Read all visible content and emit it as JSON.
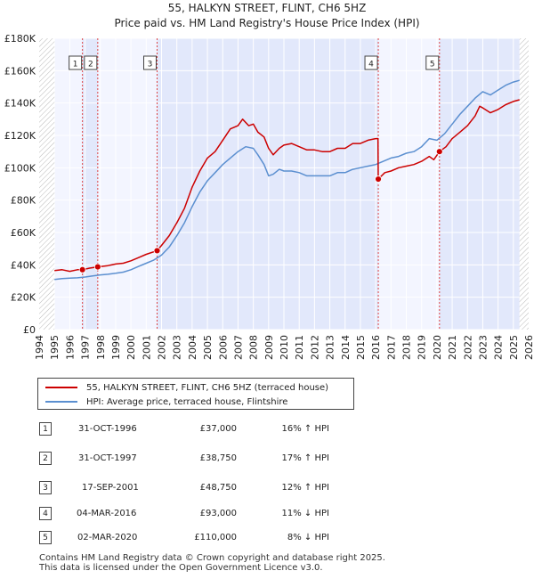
{
  "chart_data": {
    "type": "line",
    "title": "55, HALKYN STREET, FLINT, CH6 5HZ",
    "subtitle": "Price paid vs. HM Land Registry's House Price Index (HPI)",
    "xlabel": "",
    "ylabel": "",
    "xlim": [
      1994.0,
      2026.0
    ],
    "ylim": [
      0,
      180000
    ],
    "xticks": [
      "1994",
      "1995",
      "1996",
      "1997",
      "1998",
      "1999",
      "2000",
      "2001",
      "2002",
      "2003",
      "2004",
      "2005",
      "2006",
      "2007",
      "2008",
      "2009",
      "2010",
      "2011",
      "2012",
      "2013",
      "2014",
      "2015",
      "2016",
      "2017",
      "2018",
      "2019",
      "2020",
      "2021",
      "2022",
      "2023",
      "2024",
      "2025",
      "2026"
    ],
    "yticks": [
      {
        "value": 0,
        "label": "£0"
      },
      {
        "value": 20000,
        "label": "£20K"
      },
      {
        "value": 40000,
        "label": "£40K"
      },
      {
        "value": 60000,
        "label": "£60K"
      },
      {
        "value": 80000,
        "label": "£80K"
      },
      {
        "value": 100000,
        "label": "£100K"
      },
      {
        "value": 120000,
        "label": "£120K"
      },
      {
        "value": 140000,
        "label": "£140K"
      },
      {
        "value": 160000,
        "label": "£160K"
      },
      {
        "value": 180000,
        "label": "£180K"
      }
    ],
    "data_start": 1995.0,
    "data_end": 2025.4,
    "grid": true,
    "series": [
      {
        "name": "55, HALKYN STREET, FLINT, CH6 5HZ (terraced house)",
        "color": "#cc0000",
        "points": [
          [
            1995.0,
            36500
          ],
          [
            1995.5,
            37000
          ],
          [
            1996.0,
            36000
          ],
          [
            1996.5,
            37000
          ],
          [
            1996.83,
            37000
          ],
          [
            1997.3,
            38000
          ],
          [
            1997.83,
            38750
          ],
          [
            1998.5,
            39500
          ],
          [
            1999.0,
            40500
          ],
          [
            1999.5,
            41000
          ],
          [
            2000.0,
            42500
          ],
          [
            2000.5,
            44500
          ],
          [
            2001.0,
            46500
          ],
          [
            2001.71,
            48750
          ],
          [
            2002.0,
            52000
          ],
          [
            2002.5,
            58000
          ],
          [
            2003.0,
            66000
          ],
          [
            2003.5,
            75000
          ],
          [
            2004.0,
            88000
          ],
          [
            2004.5,
            98000
          ],
          [
            2005.0,
            106000
          ],
          [
            2005.5,
            110000
          ],
          [
            2006.0,
            117000
          ],
          [
            2006.5,
            124000
          ],
          [
            2007.0,
            126000
          ],
          [
            2007.3,
            130000
          ],
          [
            2007.7,
            126000
          ],
          [
            2008.0,
            127000
          ],
          [
            2008.3,
            122000
          ],
          [
            2008.7,
            119000
          ],
          [
            2009.0,
            112000
          ],
          [
            2009.3,
            108000
          ],
          [
            2009.7,
            112000
          ],
          [
            2010.0,
            114000
          ],
          [
            2010.5,
            115000
          ],
          [
            2011.0,
            113000
          ],
          [
            2011.5,
            111000
          ],
          [
            2012.0,
            111000
          ],
          [
            2012.5,
            110000
          ],
          [
            2013.0,
            110000
          ],
          [
            2013.5,
            112000
          ],
          [
            2014.0,
            112000
          ],
          [
            2014.5,
            115000
          ],
          [
            2015.0,
            115000
          ],
          [
            2015.5,
            117000
          ],
          [
            2016.0,
            118000
          ],
          [
            2016.15,
            118000
          ],
          [
            2016.17,
            93000
          ],
          [
            2016.6,
            97000
          ],
          [
            2017.0,
            98000
          ],
          [
            2017.5,
            100000
          ],
          [
            2018.0,
            101000
          ],
          [
            2018.5,
            102000
          ],
          [
            2019.0,
            104000
          ],
          [
            2019.5,
            107000
          ],
          [
            2019.8,
            105000
          ],
          [
            2020.17,
            110000
          ],
          [
            2020.6,
            113000
          ],
          [
            2021.0,
            118000
          ],
          [
            2021.5,
            122000
          ],
          [
            2022.0,
            126000
          ],
          [
            2022.5,
            132000
          ],
          [
            2022.8,
            138000
          ],
          [
            2023.0,
            137000
          ],
          [
            2023.5,
            134000
          ],
          [
            2024.0,
            136000
          ],
          [
            2024.5,
            139000
          ],
          [
            2025.0,
            141000
          ],
          [
            2025.4,
            142000
          ]
        ]
      },
      {
        "name": "HPI: Average price, terraced house, Flintshire",
        "color": "#5b8fd0",
        "points": [
          [
            1995.0,
            31000
          ],
          [
            1995.5,
            31500
          ],
          [
            1996.0,
            31800
          ],
          [
            1996.5,
            32000
          ],
          [
            1997.0,
            32500
          ],
          [
            1997.5,
            33200
          ],
          [
            1998.0,
            33800
          ],
          [
            1998.5,
            34200
          ],
          [
            1999.0,
            34800
          ],
          [
            1999.5,
            35500
          ],
          [
            2000.0,
            37000
          ],
          [
            2000.5,
            39000
          ],
          [
            2001.0,
            41000
          ],
          [
            2001.5,
            43000
          ],
          [
            2002.0,
            46000
          ],
          [
            2002.5,
            51000
          ],
          [
            2003.0,
            58000
          ],
          [
            2003.5,
            66000
          ],
          [
            2004.0,
            76000
          ],
          [
            2004.5,
            85000
          ],
          [
            2005.0,
            92000
          ],
          [
            2005.5,
            97000
          ],
          [
            2006.0,
            102000
          ],
          [
            2006.5,
            106000
          ],
          [
            2007.0,
            110000
          ],
          [
            2007.5,
            113000
          ],
          [
            2008.0,
            112000
          ],
          [
            2008.3,
            108000
          ],
          [
            2008.7,
            102000
          ],
          [
            2009.0,
            95000
          ],
          [
            2009.3,
            96000
          ],
          [
            2009.7,
            99000
          ],
          [
            2010.0,
            98000
          ],
          [
            2010.5,
            98000
          ],
          [
            2011.0,
            97000
          ],
          [
            2011.5,
            95000
          ],
          [
            2012.0,
            95000
          ],
          [
            2012.5,
            95000
          ],
          [
            2013.0,
            95000
          ],
          [
            2013.5,
            97000
          ],
          [
            2014.0,
            97000
          ],
          [
            2014.5,
            99000
          ],
          [
            2015.0,
            100000
          ],
          [
            2015.5,
            101000
          ],
          [
            2016.0,
            102000
          ],
          [
            2016.5,
            104000
          ],
          [
            2017.0,
            106000
          ],
          [
            2017.5,
            107000
          ],
          [
            2018.0,
            109000
          ],
          [
            2018.5,
            110000
          ],
          [
            2019.0,
            113000
          ],
          [
            2019.5,
            118000
          ],
          [
            2020.0,
            117000
          ],
          [
            2020.5,
            121000
          ],
          [
            2021.0,
            127000
          ],
          [
            2021.5,
            133000
          ],
          [
            2022.0,
            138000
          ],
          [
            2022.5,
            143000
          ],
          [
            2023.0,
            147000
          ],
          [
            2023.5,
            145000
          ],
          [
            2024.0,
            148000
          ],
          [
            2024.5,
            151000
          ],
          [
            2025.0,
            153000
          ],
          [
            2025.4,
            154000
          ]
        ]
      }
    ],
    "sales": [
      {
        "num": "1",
        "year": 1996.83,
        "price": 37000,
        "date": "31-OCT-1996",
        "price_label": "£37,000",
        "hpi": "16% ↑ HPI"
      },
      {
        "num": "2",
        "year": 1997.83,
        "price": 38750,
        "date": "31-OCT-1997",
        "price_label": "£38,750",
        "hpi": "17% ↑ HPI"
      },
      {
        "num": "3",
        "year": 2001.71,
        "price": 48750,
        "date": "17-SEP-2001",
        "price_label": "£48,750",
        "hpi": "12% ↑ HPI"
      },
      {
        "num": "4",
        "year": 2016.17,
        "price": 93000,
        "date": "04-MAR-2016",
        "price_label": "£93,000",
        "hpi": "11% ↓ HPI"
      },
      {
        "num": "5",
        "year": 2020.17,
        "price": 110000,
        "date": "02-MAR-2020",
        "price_label": "£110,000",
        "hpi": "8% ↓ HPI"
      }
    ],
    "shaded_ranges": [
      [
        1996.83,
        1997.83
      ],
      [
        2001.71,
        2016.17
      ],
      [
        2020.17,
        2025.4
      ]
    ]
  },
  "legend": {
    "property_label": "55, HALKYN STREET, FLINT, CH6 5HZ (terraced house)",
    "hpi_label": "HPI: Average price, terraced house, Flintshire"
  },
  "footer": {
    "line1": "Contains HM Land Registry data © Crown copyright and database right 2025.",
    "line2": "This data is licensed under the Open Government Licence v3.0."
  }
}
